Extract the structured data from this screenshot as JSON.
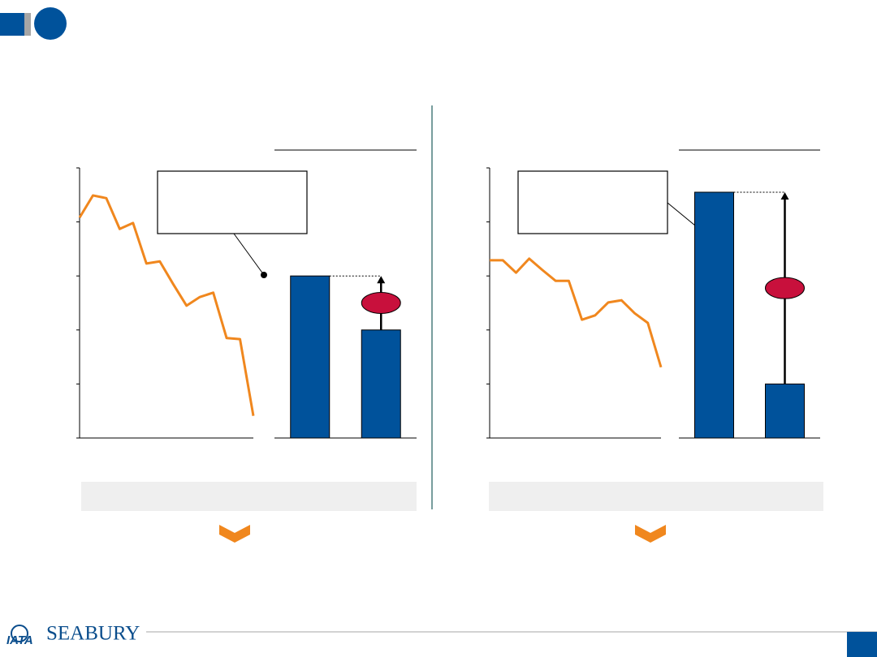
{
  "logo": {
    "left": "IATA",
    "right": "SEABURY"
  },
  "chart_data": [
    {
      "type": "line",
      "color": "#f0871e",
      "ylim": [
        0,
        5
      ],
      "yticks": [
        0,
        1,
        2,
        3,
        4,
        5
      ],
      "values": [
        4.08,
        4.49,
        4.44,
        3.87,
        3.98,
        3.23,
        3.27,
        2.85,
        2.45,
        2.61,
        2.69,
        1.85,
        1.83,
        0.41
      ]
    },
    {
      "type": "bar",
      "color": "#00529b",
      "ylim": [
        0,
        5
      ],
      "values": [
        3.0,
        2.0
      ]
    },
    {
      "type": "line",
      "color": "#f0871e",
      "ylim": [
        0,
        5
      ],
      "yticks": [
        0,
        1,
        2,
        3,
        4,
        5
      ],
      "values": [
        3.29,
        3.29,
        3.06,
        3.32,
        3.11,
        2.91,
        2.91,
        2.19,
        2.27,
        2.51,
        2.55,
        2.31,
        2.13,
        1.31
      ]
    },
    {
      "type": "bar",
      "color": "#00529b",
      "ylim": [
        0,
        5
      ],
      "values": [
        4.55,
        1.0
      ]
    }
  ]
}
